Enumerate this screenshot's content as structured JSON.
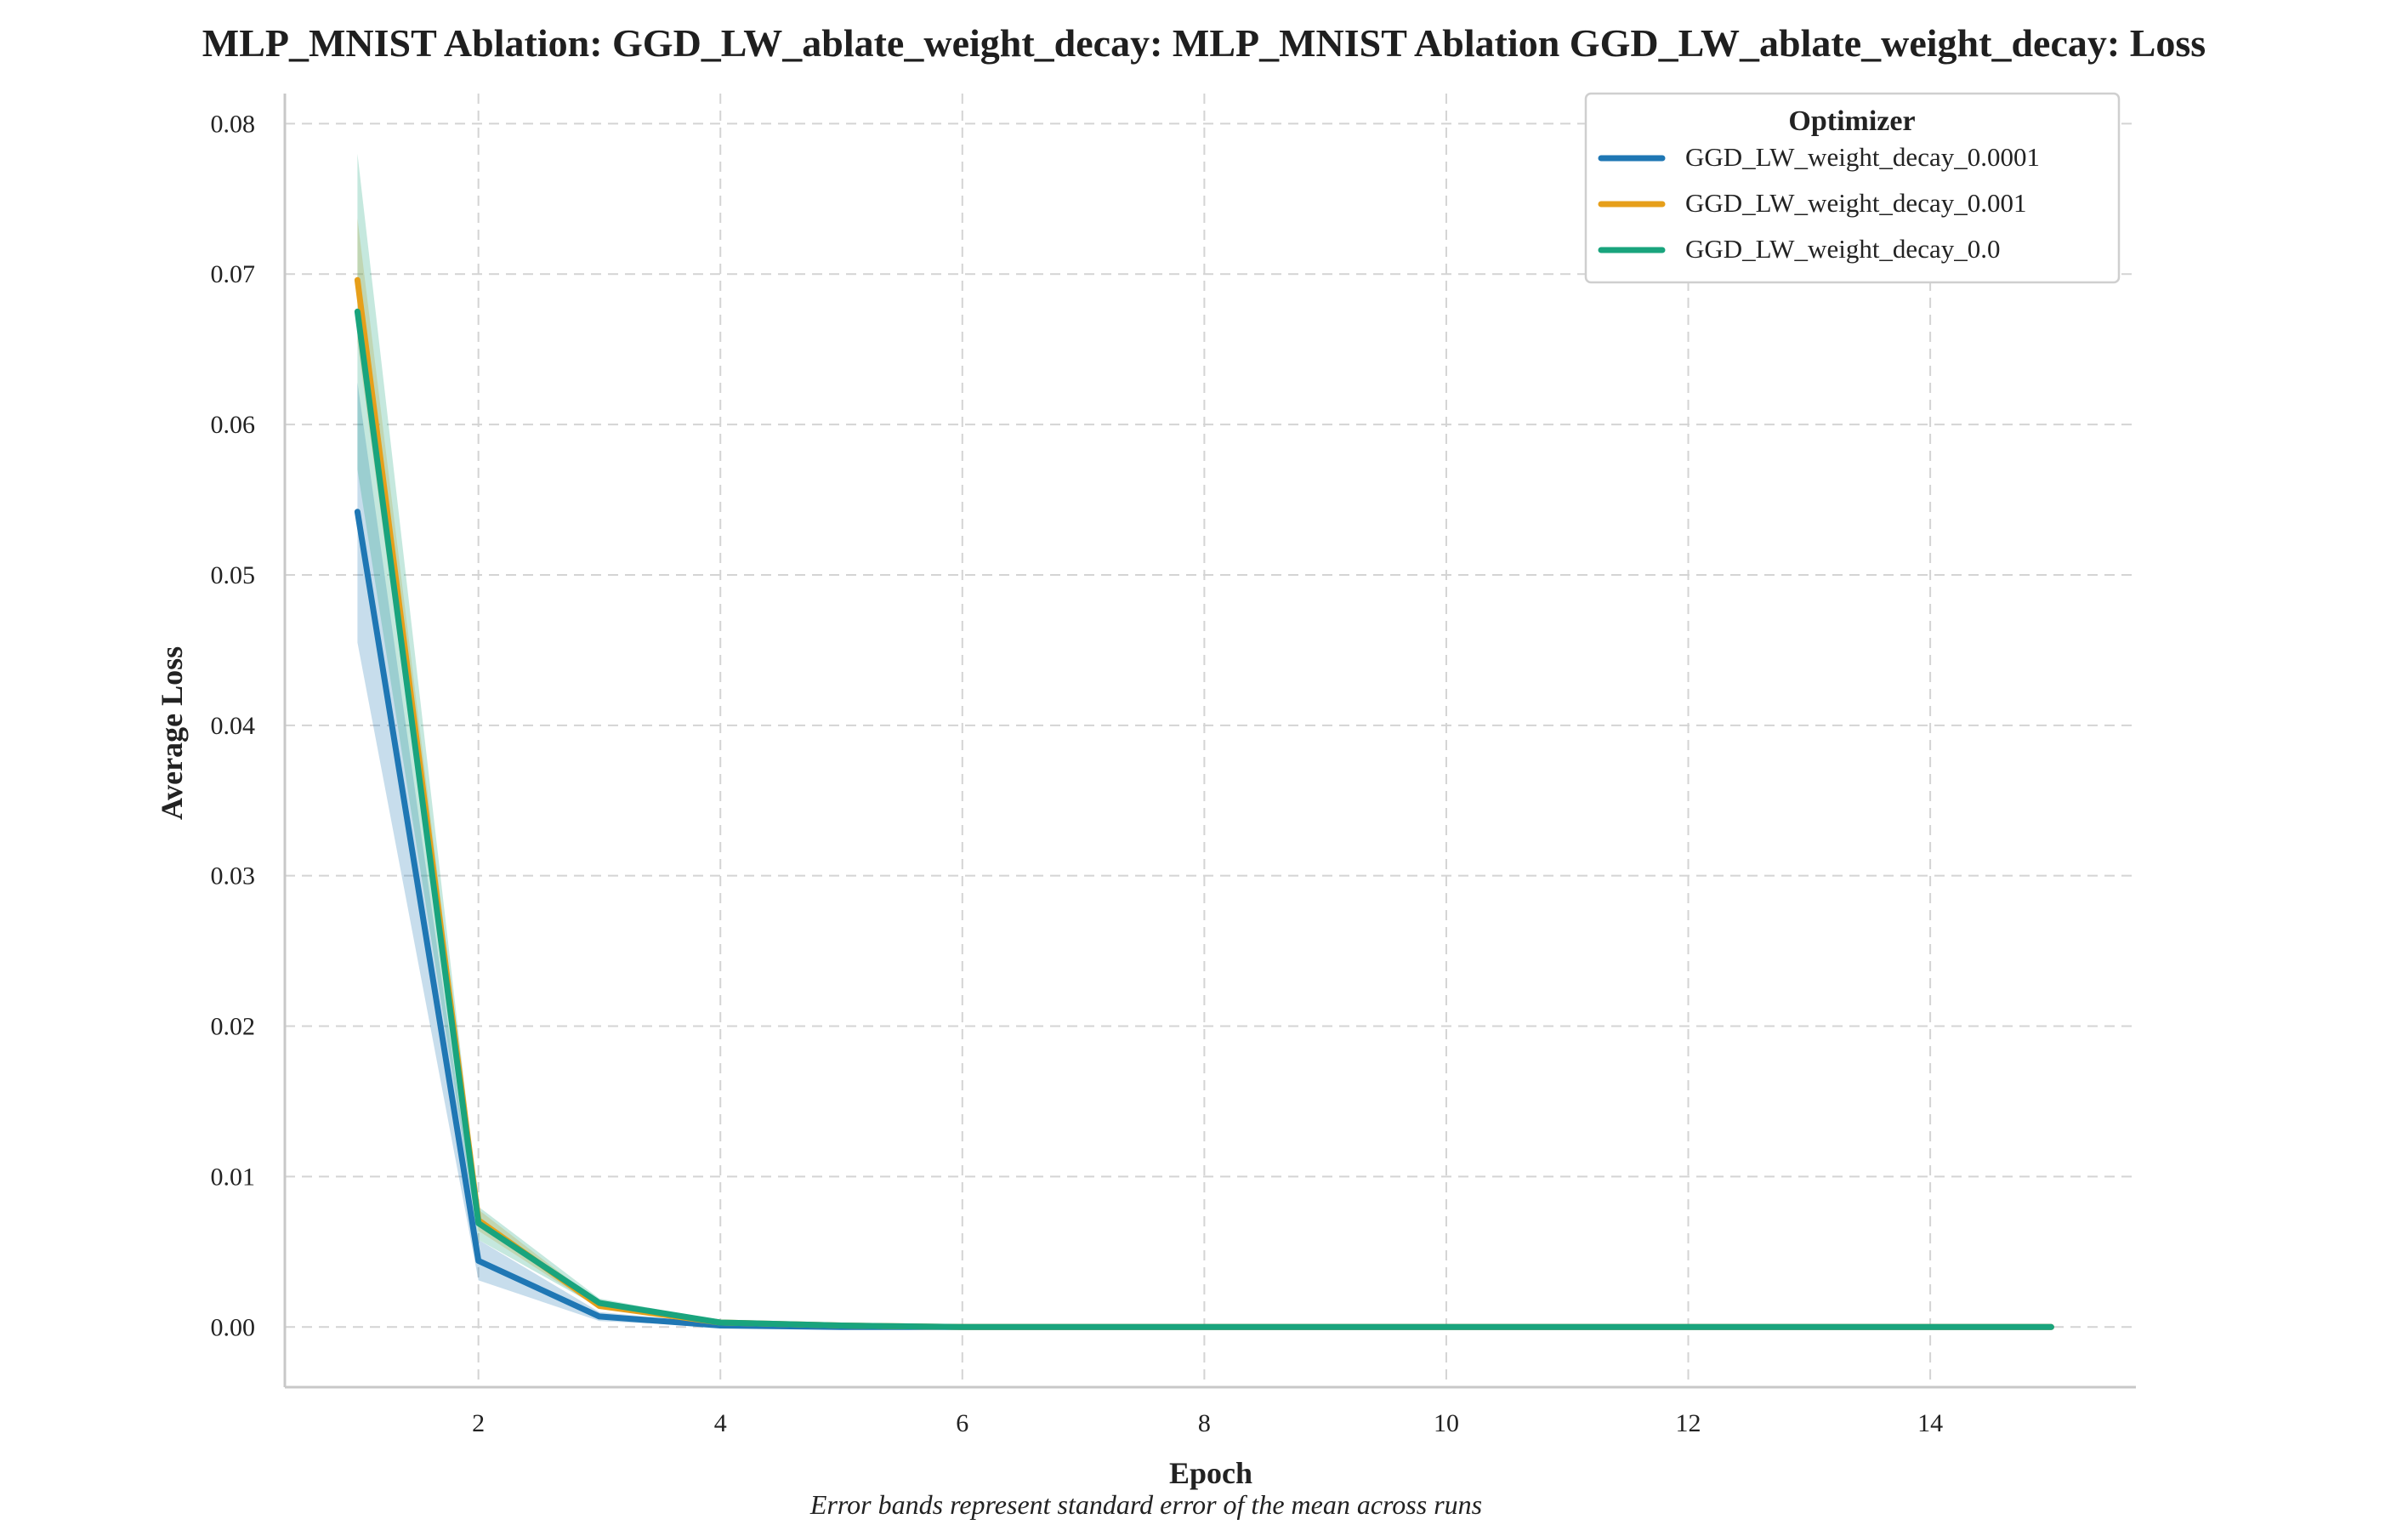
{
  "chart_data": {
    "type": "line",
    "title": "MLP_MNIST Ablation: GGD_LW_ablate_weight_decay: MLP_MNIST Ablation GGD_LW_ablate_weight_decay: Loss",
    "xlabel": "Epoch",
    "ylabel": "Average Loss",
    "caption": "Error bands represent standard error of the mean across runs",
    "xlim": [
      0.4,
      15.7
    ],
    "ylim": [
      -0.004,
      0.082
    ],
    "xticks": [
      2,
      4,
      6,
      8,
      10,
      12,
      14
    ],
    "xtick_labels": [
      "2",
      "4",
      "6",
      "8",
      "10",
      "12",
      "14"
    ],
    "yticks": [
      0.0,
      0.01,
      0.02,
      0.03,
      0.04,
      0.05,
      0.06,
      0.07,
      0.08
    ],
    "ytick_labels": [
      "0.00",
      "0.01",
      "0.02",
      "0.03",
      "0.04",
      "0.05",
      "0.06",
      "0.07",
      "0.08"
    ],
    "grid": true,
    "legend": {
      "title": "Optimizer",
      "placement": "top-right"
    },
    "x": [
      1,
      2,
      3,
      4,
      5,
      6,
      7,
      8,
      9,
      10,
      11,
      12,
      13,
      14,
      15
    ],
    "series": [
      {
        "name": "GGD_LW_weight_decay_0.0001",
        "color": "#1f77b4",
        "values": [
          0.0542,
          0.0044,
          0.0007,
          0.0001,
          0.0,
          0.0,
          0.0,
          0.0,
          0.0,
          0.0,
          0.0,
          0.0,
          0.0,
          0.0,
          0.0
        ],
        "lower": [
          0.0455,
          0.0031,
          0.0004,
          0.0,
          0.0,
          0.0,
          0.0,
          0.0,
          0.0,
          0.0,
          0.0,
          0.0,
          0.0,
          0.0,
          0.0
        ],
        "upper": [
          0.0628,
          0.0058,
          0.001,
          0.0002,
          0.0,
          0.0,
          0.0,
          0.0,
          0.0,
          0.0,
          0.0,
          0.0,
          0.0,
          0.0,
          0.0
        ]
      },
      {
        "name": "GGD_LW_weight_decay_0.001",
        "color": "#e69f1a",
        "values": [
          0.0696,
          0.0071,
          0.0014,
          0.0003,
          0.0001,
          0.0,
          0.0,
          0.0,
          0.0,
          0.0,
          0.0,
          0.0,
          0.0,
          0.0,
          0.0
        ],
        "lower": [
          0.0655,
          0.0064,
          0.0012,
          0.0002,
          0.0,
          0.0,
          0.0,
          0.0,
          0.0,
          0.0,
          0.0,
          0.0,
          0.0,
          0.0,
          0.0
        ],
        "upper": [
          0.0737,
          0.0078,
          0.0016,
          0.0004,
          0.0001,
          0.0,
          0.0,
          0.0,
          0.0,
          0.0,
          0.0,
          0.0,
          0.0,
          0.0,
          0.0
        ]
      },
      {
        "name": "GGD_LW_weight_decay_0.0",
        "color": "#19a47d",
        "values": [
          0.0675,
          0.0069,
          0.0016,
          0.0003,
          0.0001,
          0.0,
          0.0,
          0.0,
          0.0,
          0.0,
          0.0,
          0.0,
          0.0,
          0.0,
          0.0
        ],
        "lower": [
          0.057,
          0.0058,
          0.0013,
          0.0002,
          0.0,
          0.0,
          0.0,
          0.0,
          0.0,
          0.0,
          0.0,
          0.0,
          0.0,
          0.0,
          0.0
        ],
        "upper": [
          0.078,
          0.008,
          0.0019,
          0.0004,
          0.0001,
          0.0,
          0.0,
          0.0,
          0.0,
          0.0,
          0.0,
          0.0,
          0.0,
          0.0,
          0.0
        ]
      }
    ]
  }
}
